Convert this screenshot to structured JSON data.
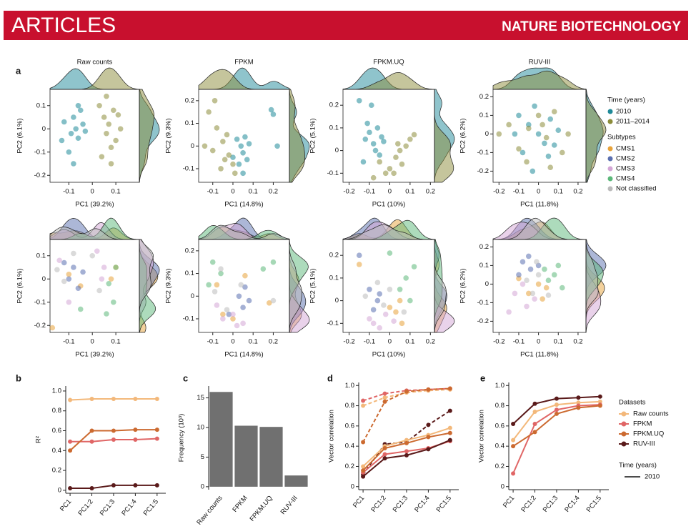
{
  "header": {
    "section": "ARTICLES",
    "journal": "NATURE BIOTECHNOLOGY"
  },
  "panels": [
    "a",
    "b",
    "c",
    "d",
    "e"
  ],
  "chart_data": [
    {
      "type": "scatter",
      "title": "Raw counts",
      "xlabel": "PC1 (39.2%)",
      "ylabel": "PC2 (6.1%)",
      "xlim": [
        -0.18,
        0.2
      ],
      "ylim": [
        -0.23,
        0.17
      ],
      "xticks": [
        -0.1,
        0,
        0.1
      ],
      "yticks": [
        -0.2,
        -0.1,
        0,
        0.1
      ],
      "series": [
        {
          "name": "2010",
          "color": "#1f8a99",
          "x": [
            -0.12,
            -0.09,
            -0.08,
            -0.07,
            -0.06,
            -0.05,
            -0.1,
            -0.04,
            -0.08,
            -0.13,
            -0.06,
            -0.03
          ],
          "y": [
            0.03,
            -0.02,
            0.05,
            0,
            -0.04,
            0.08,
            -0.1,
            0.02,
            -0.15,
            -0.05,
            0.1,
            -0.01
          ]
        },
        {
          "name": "2011–2014",
          "color": "#8c8c3a",
          "x": [
            0.03,
            0.05,
            0.06,
            0.07,
            0.08,
            0.09,
            0.1,
            0.04,
            0.12,
            0.06,
            0.08,
            0.11
          ],
          "y": [
            0.1,
            0.05,
            -0.02,
            0.02,
            -0.08,
            0.08,
            -0.05,
            -0.12,
            0,
            0.14,
            -0.15,
            0.06
          ]
        }
      ]
    },
    {
      "type": "scatter",
      "title": "FPKM",
      "xlabel": "PC1 (14.8%)",
      "ylabel": "PC2 (9.3%)",
      "xlim": [
        -0.17,
        0.28
      ],
      "ylim": [
        -0.16,
        0.25
      ],
      "xticks": [
        -0.1,
        0,
        0.1,
        0.2
      ],
      "yticks": [
        -0.1,
        0,
        0.1,
        0.2
      ],
      "series": [
        {
          "name": "2010",
          "color": "#1f8a99",
          "x": [
            0.02,
            0.04,
            0.05,
            0.06,
            0.08,
            0.03,
            0.07,
            0.19,
            0.2,
            0.22,
            0.05,
            0
          ],
          "y": [
            0.03,
            0,
            -0.03,
            0.04,
            0.01,
            -0.08,
            -0.06,
            0.16,
            0.14,
            0,
            -0.12,
            -0.05
          ]
        },
        {
          "name": "2011–2014",
          "color": "#8c8c3a",
          "x": [
            -0.12,
            -0.08,
            -0.05,
            -0.02,
            0,
            -0.1,
            -0.06,
            -0.03,
            0.01,
            -0.09,
            -0.04,
            -0.14
          ],
          "y": [
            0.15,
            0.08,
            0.02,
            -0.04,
            -0.08,
            -0.02,
            -0.1,
            0.05,
            -0.12,
            0.2,
            -0.06,
            0
          ]
        }
      ]
    },
    {
      "type": "scatter",
      "title": "FPKM.UQ",
      "xlabel": "PC1 (10%)",
      "ylabel": "PC2 (5.1%)",
      "xlim": [
        -0.23,
        0.22
      ],
      "ylim": [
        -0.14,
        0.27
      ],
      "xticks": [
        -0.2,
        -0.1,
        0,
        0.1,
        0.2
      ],
      "yticks": [
        -0.1,
        0,
        0.1,
        0.2
      ],
      "series": [
        {
          "name": "2010",
          "color": "#1f8a99",
          "x": [
            -0.12,
            -0.1,
            -0.08,
            -0.06,
            -0.04,
            -0.07,
            -0.05,
            -0.09,
            -0.15,
            -0.13,
            -0.03,
            -0.11
          ],
          "y": [
            0.05,
            0.08,
            0.03,
            0.1,
            0.06,
            0,
            -0.02,
            0.2,
            0.22,
            -0.05,
            0.04,
            0.12
          ]
        },
        {
          "name": "2011–2014",
          "color": "#8c8c3a",
          "x": [
            -0.05,
            0,
            0.03,
            0.05,
            0.08,
            0.1,
            0.02,
            -0.02,
            0.06,
            0.12,
            -0.08,
            0.04
          ],
          "y": [
            -0.05,
            -0.08,
            -0.03,
            0,
            0.02,
            0.05,
            -0.1,
            -0.1,
            -0.06,
            0.07,
            -0.12,
            0.03
          ]
        }
      ]
    },
    {
      "type": "scatter",
      "title": "RUV-III",
      "xlabel": "PC1 (11.8%)",
      "ylabel": "PC2 (6.2%)",
      "xlim": [
        -0.23,
        0.24
      ],
      "ylim": [
        -0.26,
        0.24
      ],
      "xticks": [
        -0.2,
        -0.1,
        0,
        0.1,
        0.2
      ],
      "yticks": [
        -0.2,
        -0.1,
        0,
        0.1,
        0.2
      ],
      "legend_title": "Time (years)",
      "series": [
        {
          "name": "2010",
          "color": "#1f8a99",
          "x": [
            -0.1,
            -0.05,
            0,
            0.03,
            0.06,
            -0.08,
            0.1,
            -0.02,
            0.05,
            -0.12,
            0.08,
            -0.03
          ],
          "y": [
            0.1,
            0.05,
            0,
            -0.05,
            0.08,
            -0.1,
            0.02,
            0.15,
            -0.12,
            0,
            -0.06,
            -0.2
          ]
        },
        {
          "name": "2011–2014",
          "color": "#8c8c3a",
          "x": [
            -0.15,
            -0.1,
            -0.05,
            0,
            0.04,
            0.08,
            0.12,
            -0.06,
            0.02,
            0.15,
            -0.2,
            0.06
          ],
          "y": [
            0.05,
            -0.08,
            0.03,
            0.1,
            -0.02,
            0.12,
            -0.1,
            -0.15,
            0.05,
            0,
            0,
            -0.18
          ]
        }
      ]
    },
    {
      "type": "scatter",
      "xlabel": "PC1 (39.2%)",
      "ylabel": "PC2 (6.1%)",
      "xlim": [
        -0.18,
        0.2
      ],
      "ylim": [
        -0.23,
        0.17
      ],
      "xticks": [
        -0.1,
        0,
        0.1
      ],
      "yticks": [
        -0.2,
        -0.1,
        0,
        0.1
      ],
      "series": [
        {
          "name": "CMS1",
          "color": "#e8a33a",
          "x": [
            -0.1,
            -0.05,
            0.08,
            -0.17,
            0.1
          ],
          "y": [
            0.02,
            -0.03,
            0,
            -0.21,
            0.05
          ]
        },
        {
          "name": "CMS2",
          "color": "#5a6fb0",
          "x": [
            -0.1,
            -0.08,
            -0.06,
            -0.12,
            -0.04
          ],
          "y": [
            0,
            0.05,
            -0.04,
            0.07,
            0.03
          ]
        },
        {
          "name": "CMS3",
          "color": "#d4a6d6",
          "x": [
            -0.14,
            0.02,
            0.05,
            -0.1,
            0.04
          ],
          "y": [
            0.08,
            0.12,
            0.05,
            -0.1,
            0
          ]
        },
        {
          "name": "CMS4",
          "color": "#5cb87a",
          "x": [
            0.07,
            0.09,
            0.1,
            0.06,
            -0.05
          ],
          "y": [
            -0.02,
            -0.1,
            0.05,
            -0.15,
            -0.13
          ]
        },
        {
          "name": "Not classified",
          "color": "#bbbbbb",
          "x": [
            -0.15,
            -0.12,
            0,
            0.03,
            -0.08
          ],
          "y": [
            0.04,
            -0.01,
            0.1,
            -0.05,
            0.11
          ]
        }
      ]
    },
    {
      "type": "scatter",
      "xlabel": "PC1 (14.8%)",
      "ylabel": "PC2 (9.3%)",
      "xlim": [
        -0.17,
        0.28
      ],
      "ylim": [
        -0.16,
        0.25
      ],
      "xticks": [
        -0.1,
        0,
        0.1,
        0.2
      ],
      "yticks": [
        -0.1,
        0,
        0.1,
        0.2
      ],
      "series": [
        {
          "name": "CMS1",
          "color": "#e8a33a",
          "x": [
            -0.08,
            0,
            0.18,
            -0.05,
            0.06
          ],
          "y": [
            0.05,
            -0.1,
            -0.03,
            -0.08,
            0.09
          ]
        },
        {
          "name": "CMS2",
          "color": "#5a6fb0",
          "x": [
            0.03,
            0.05,
            0.08,
            -0.02,
            0.06
          ],
          "y": [
            0,
            -0.05,
            -0.02,
            -0.08,
            0.04
          ]
        },
        {
          "name": "CMS3",
          "color": "#d4a6d6",
          "x": [
            -0.05,
            0.02,
            0,
            -0.08,
            0.05
          ],
          "y": [
            -0.1,
            -0.13,
            -0.08,
            -0.04,
            -0.12
          ]
        },
        {
          "name": "CMS4",
          "color": "#5cb87a",
          "x": [
            -0.1,
            -0.12,
            -0.06,
            0.15,
            0.2
          ],
          "y": [
            0.15,
            0.05,
            0.1,
            0.12,
            0.15
          ]
        },
        {
          "name": "Not classified",
          "color": "#bbbbbb",
          "x": [
            -0.09,
            -0.03,
            0.04,
            0.2,
            -0.06
          ],
          "y": [
            0.02,
            -0.06,
            0.05,
            -0.02,
            0.12
          ]
        }
      ]
    },
    {
      "type": "scatter",
      "xlabel": "PC1 (10%)",
      "ylabel": "PC2 (5.1%)",
      "xlim": [
        -0.23,
        0.22
      ],
      "ylim": [
        -0.14,
        0.27
      ],
      "xticks": [
        -0.2,
        -0.1,
        0,
        0.1,
        0.2
      ],
      "yticks": [
        -0.1,
        0,
        0.1,
        0.2
      ],
      "series": [
        {
          "name": "CMS1",
          "color": "#e8a33a",
          "x": [
            0,
            0.03,
            0.05,
            -0.15,
            0.06
          ],
          "y": [
            -0.03,
            -0.05,
            0,
            0.16,
            -0.1
          ]
        },
        {
          "name": "CMS2",
          "color": "#5a6fb0",
          "x": [
            -0.1,
            -0.06,
            -0.05,
            -0.08,
            -0.15
          ],
          "y": [
            0.05,
            0,
            0.03,
            -0.04,
            0.2
          ]
        },
        {
          "name": "CMS3",
          "color": "#d4a6d6",
          "x": [
            -0.1,
            -0.05,
            -0.02,
            -0.08,
            0.02
          ],
          "y": [
            -0.08,
            -0.12,
            -0.06,
            -0.1,
            -0.09
          ]
        },
        {
          "name": "CMS4",
          "color": "#5cb87a",
          "x": [
            0.05,
            0.08,
            0.1,
            0.12,
            0
          ],
          "y": [
            0.05,
            0.1,
            0,
            0.15,
            0.21
          ]
        },
        {
          "name": "Not classified",
          "color": "#bbbbbb",
          "x": [
            -0.12,
            -0.03,
            0,
            0.07,
            -0.06
          ],
          "y": [
            0.02,
            -0.02,
            0.05,
            -0.05,
            0.08
          ]
        }
      ]
    },
    {
      "type": "scatter",
      "xlabel": "PC1 (11.8%)",
      "ylabel": "PC2 (6.2%)",
      "xlim": [
        -0.23,
        0.24
      ],
      "ylim": [
        -0.26,
        0.24
      ],
      "xticks": [
        -0.2,
        -0.1,
        0,
        0.1,
        0.2
      ],
      "yticks": [
        -0.2,
        -0.1,
        0,
        0.1,
        0.2
      ],
      "legend_title": "Subtypes",
      "series": [
        {
          "name": "CMS1",
          "color": "#e8a33a",
          "x": [
            -0.05,
            0,
            -0.1,
            0.04,
            0.02
          ],
          "y": [
            -0.05,
            0,
            0.03,
            -0.02,
            -0.08
          ]
        },
        {
          "name": "CMS2",
          "color": "#5a6fb0",
          "x": [
            -0.08,
            -0.04,
            0,
            -0.1,
            -0.05
          ],
          "y": [
            0.12,
            0.08,
            0.1,
            0.05,
            0.15
          ]
        },
        {
          "name": "CMS3",
          "color": "#d4a6d6",
          "x": [
            -0.12,
            -0.06,
            -0.02,
            -0.15,
            -0.08
          ],
          "y": [
            -0.05,
            -0.12,
            -0.08,
            -0.15,
            0
          ]
        },
        {
          "name": "CMS4",
          "color": "#5cb87a",
          "x": [
            0.05,
            0.08,
            0.12,
            0.03,
            0.1
          ],
          "y": [
            0.02,
            0.05,
            -0.02,
            0.08,
            0.1
          ]
        },
        {
          "name": "Not classified",
          "color": "#bbbbbb",
          "x": [
            -0.06,
            0,
            -0.03,
            0.05,
            -0.01
          ],
          "y": [
            0.02,
            0.05,
            -0.05,
            -0.06,
            0.12
          ]
        }
      ]
    },
    {
      "type": "line",
      "ylabel": "R²",
      "categories": [
        "PC1",
        "PC1:2",
        "PC1:3",
        "PC1:4",
        "PC1:5"
      ],
      "ylim": [
        -0.03,
        1.05
      ],
      "yticks": [
        0,
        0.2,
        0.4,
        0.6,
        0.8,
        {
          "value": 1,
          "label": "1.0"
        }
      ],
      "series": [
        {
          "name": "Raw counts",
          "color": "#f3b87a",
          "values": [
            0.91,
            0.92,
            0.92,
            0.92,
            0.92
          ]
        },
        {
          "name": "FPKM",
          "color": "#e06666",
          "values": [
            0.49,
            0.49,
            0.51,
            0.51,
            0.52
          ]
        },
        {
          "name": "FPKM.UQ",
          "color": "#cc6a30",
          "values": [
            0.4,
            0.6,
            0.6,
            0.61,
            0.61
          ]
        },
        {
          "name": "RUV-III",
          "color": "#5a1a1a",
          "values": [
            0.02,
            0.02,
            0.05,
            0.05,
            0.05
          ]
        }
      ]
    },
    {
      "type": "bar",
      "ylabel": "Frequency (10³)",
      "categories": [
        "Raw counts",
        "FPKM",
        "FPKM.UQ",
        "RUV-III"
      ],
      "values": [
        16,
        10.3,
        10.1,
        1.9
      ],
      "color": "#707070",
      "ylim": [
        -0.5,
        17
      ],
      "yticks": [
        0,
        5,
        10,
        15
      ]
    },
    {
      "type": "line",
      "ylabel": "Vector correlation",
      "categories": [
        "PC1",
        "PC1:2",
        "PC1:3",
        "PC1:4",
        "PC1:5"
      ],
      "ylim": [
        -0.03,
        1.03
      ],
      "yticks": [
        0,
        0.2,
        0.4,
        0.6,
        0.8,
        {
          "value": 1,
          "label": "1.0"
        }
      ],
      "series": [
        {
          "name": "Raw counts",
          "color": "#f3b87a",
          "dash": true,
          "values": [
            0.8,
            0.88,
            0.93,
            0.95,
            0.96
          ]
        },
        {
          "name": "FPKM",
          "color": "#e06666",
          "dash": true,
          "values": [
            0.85,
            0.92,
            0.95,
            0.96,
            0.97
          ]
        },
        {
          "name": "FPKM.UQ",
          "color": "#cc6a30",
          "dash": true,
          "values": [
            0.44,
            0.84,
            0.94,
            0.96,
            0.97
          ]
        },
        {
          "name": "RUV-III",
          "color": "#5a1a1a",
          "dash": true,
          "values": [
            0.12,
            0.42,
            0.44,
            0.61,
            0.75
          ]
        },
        {
          "name": "Raw counts",
          "color": "#f3b87a",
          "values": [
            0.2,
            0.4,
            0.46,
            0.51,
            0.58
          ]
        },
        {
          "name": "FPKM",
          "color": "#e06666",
          "values": [
            0.14,
            0.32,
            0.35,
            0.38,
            0.45
          ]
        },
        {
          "name": "FPKM.UQ",
          "color": "#cc6a30",
          "values": [
            0.16,
            0.38,
            0.43,
            0.49,
            0.53
          ]
        },
        {
          "name": "RUV-III",
          "color": "#5a1a1a",
          "values": [
            0.1,
            0.28,
            0.31,
            0.37,
            0.46
          ]
        }
      ]
    },
    {
      "type": "line",
      "ylabel": "Vector correlation",
      "categories": [
        "PC1",
        "PC1:2",
        "PC1:3",
        "PC1:4",
        "PC1:5"
      ],
      "ylim": [
        -0.03,
        1.03
      ],
      "yticks": [
        0,
        0.2,
        0.4,
        0.6,
        0.8,
        {
          "value": 1,
          "label": "1.0"
        }
      ],
      "legend_title": "Datasets",
      "time_legend": {
        "title": "Time (years)",
        "items": [
          "2010"
        ]
      },
      "series": [
        {
          "name": "Raw counts",
          "color": "#f3b87a",
          "values": [
            0.46,
            0.74,
            0.81,
            0.83,
            0.84
          ]
        },
        {
          "name": "FPKM",
          "color": "#e06666",
          "values": [
            0.13,
            0.62,
            0.76,
            0.8,
            0.81
          ]
        },
        {
          "name": "FPKM.UQ",
          "color": "#cc6a30",
          "values": [
            0.4,
            0.54,
            0.72,
            0.78,
            0.8
          ]
        },
        {
          "name": "RUV-III",
          "color": "#5a1a1a",
          "values": [
            0.62,
            0.82,
            0.87,
            0.88,
            0.89
          ]
        }
      ]
    }
  ]
}
